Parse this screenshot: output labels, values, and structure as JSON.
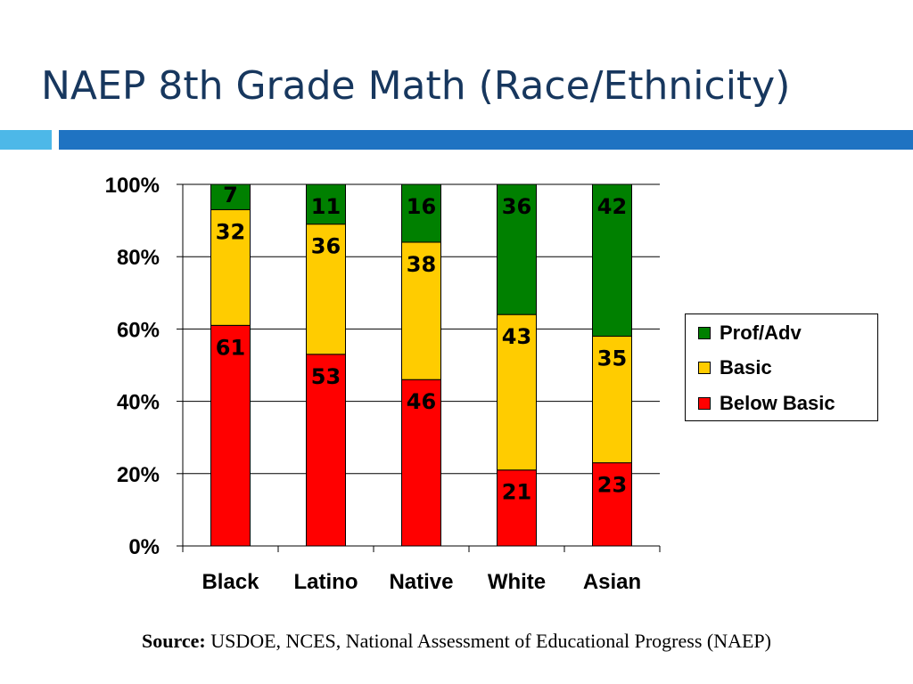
{
  "slide": {
    "title": "NAEP 8th Grade Math (Race/Ethnicity)"
  },
  "chart_data": {
    "type": "bar",
    "stacked": true,
    "categories": [
      "Black",
      "Latino",
      "Native",
      "White",
      "Asian"
    ],
    "series": [
      {
        "name": "Below Basic",
        "values": [
          61,
          53,
          46,
          21,
          23
        ],
        "color": "#ff0000"
      },
      {
        "name": "Basic",
        "values": [
          32,
          36,
          38,
          43,
          35
        ],
        "color": "#ffcc00"
      },
      {
        "name": "Prof/Adv",
        "values": [
          7,
          11,
          16,
          36,
          42
        ],
        "color": "#008000"
      }
    ],
    "ylim": [
      0,
      100
    ],
    "yticks": [
      "0%",
      "20%",
      "40%",
      "60%",
      "80%",
      "100%"
    ],
    "grid": true,
    "legend": {
      "placement": "right",
      "entries": [
        "Prof/Adv",
        "Basic",
        "Below Basic"
      ]
    }
  },
  "source": {
    "label": "Source:",
    "text": "USDOE, NCES, National Assessment of Educational Progress (NAEP)"
  }
}
